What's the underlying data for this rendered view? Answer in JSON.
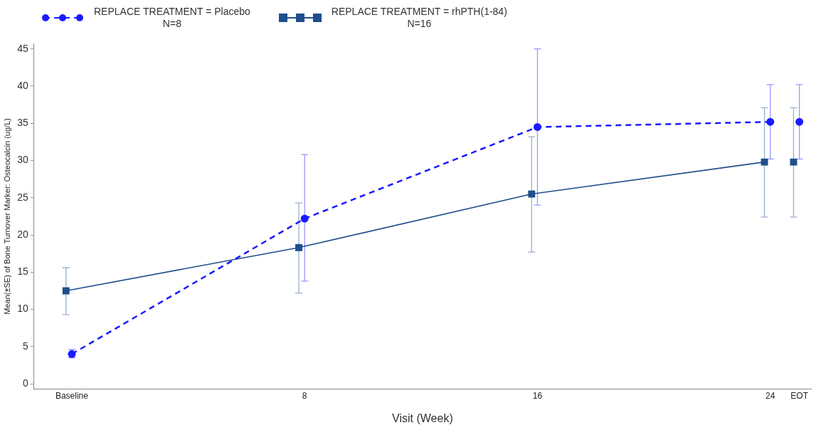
{
  "chart_data": {
    "type": "line",
    "xlabel": "Visit (Week)",
    "ylabel": "Mean(±SE) of Bone Turnover Marker: Osteocalcin (ug/L)",
    "xlim": [
      -1.3,
      25.4
    ],
    "xticks": [
      {
        "value": 0,
        "label": "Baseline"
      },
      8,
      16,
      24,
      {
        "value": 25,
        "label": "EOT"
      }
    ],
    "ylim": [
      -0.7,
      45.7
    ],
    "yticks": [
      0,
      5,
      10,
      15,
      20,
      25,
      30,
      35,
      40,
      45
    ],
    "grid": false,
    "legend": "top",
    "series": [
      {
        "name": "REPLACE TREATMENT = Placebo\nN=8",
        "color": "#1a1aff",
        "marker": "circle",
        "line_style": "dashed",
        "x": [
          0,
          8,
          16,
          24
        ],
        "values": [
          4.0,
          22.2,
          34.5,
          35.2
        ],
        "errors": [
          [
            3.5,
            4.6
          ],
          [
            13.8,
            30.8
          ],
          [
            24.0,
            45.0
          ],
          [
            30.2,
            40.2
          ]
        ]
      },
      {
        "name": "REPLACE TREATMENT = rhPTH(1-84)\nN=16",
        "color": "#1f4e8c",
        "marker": "square",
        "line_style": "solid",
        "x": [
          -0.2,
          7.8,
          15.8,
          23.8
        ],
        "values": [
          12.5,
          18.3,
          25.5,
          29.8
        ],
        "errors": [
          [
            9.3,
            15.6
          ],
          [
            12.2,
            24.3
          ],
          [
            17.7,
            33.2
          ],
          [
            22.4,
            37.1
          ]
        ]
      },
      {
        "type": "scatter",
        "color": "#1a1aff",
        "marker": "circle",
        "x": [
          25
        ],
        "values": [
          35.2
        ],
        "errors": [
          [
            30.2,
            40.2
          ]
        ]
      },
      {
        "type": "scatter",
        "color": "#1f4e8c",
        "marker": "square",
        "x": [
          24.8
        ],
        "values": [
          29.8
        ],
        "errors": [
          [
            22.4,
            37.1
          ]
        ]
      }
    ]
  }
}
